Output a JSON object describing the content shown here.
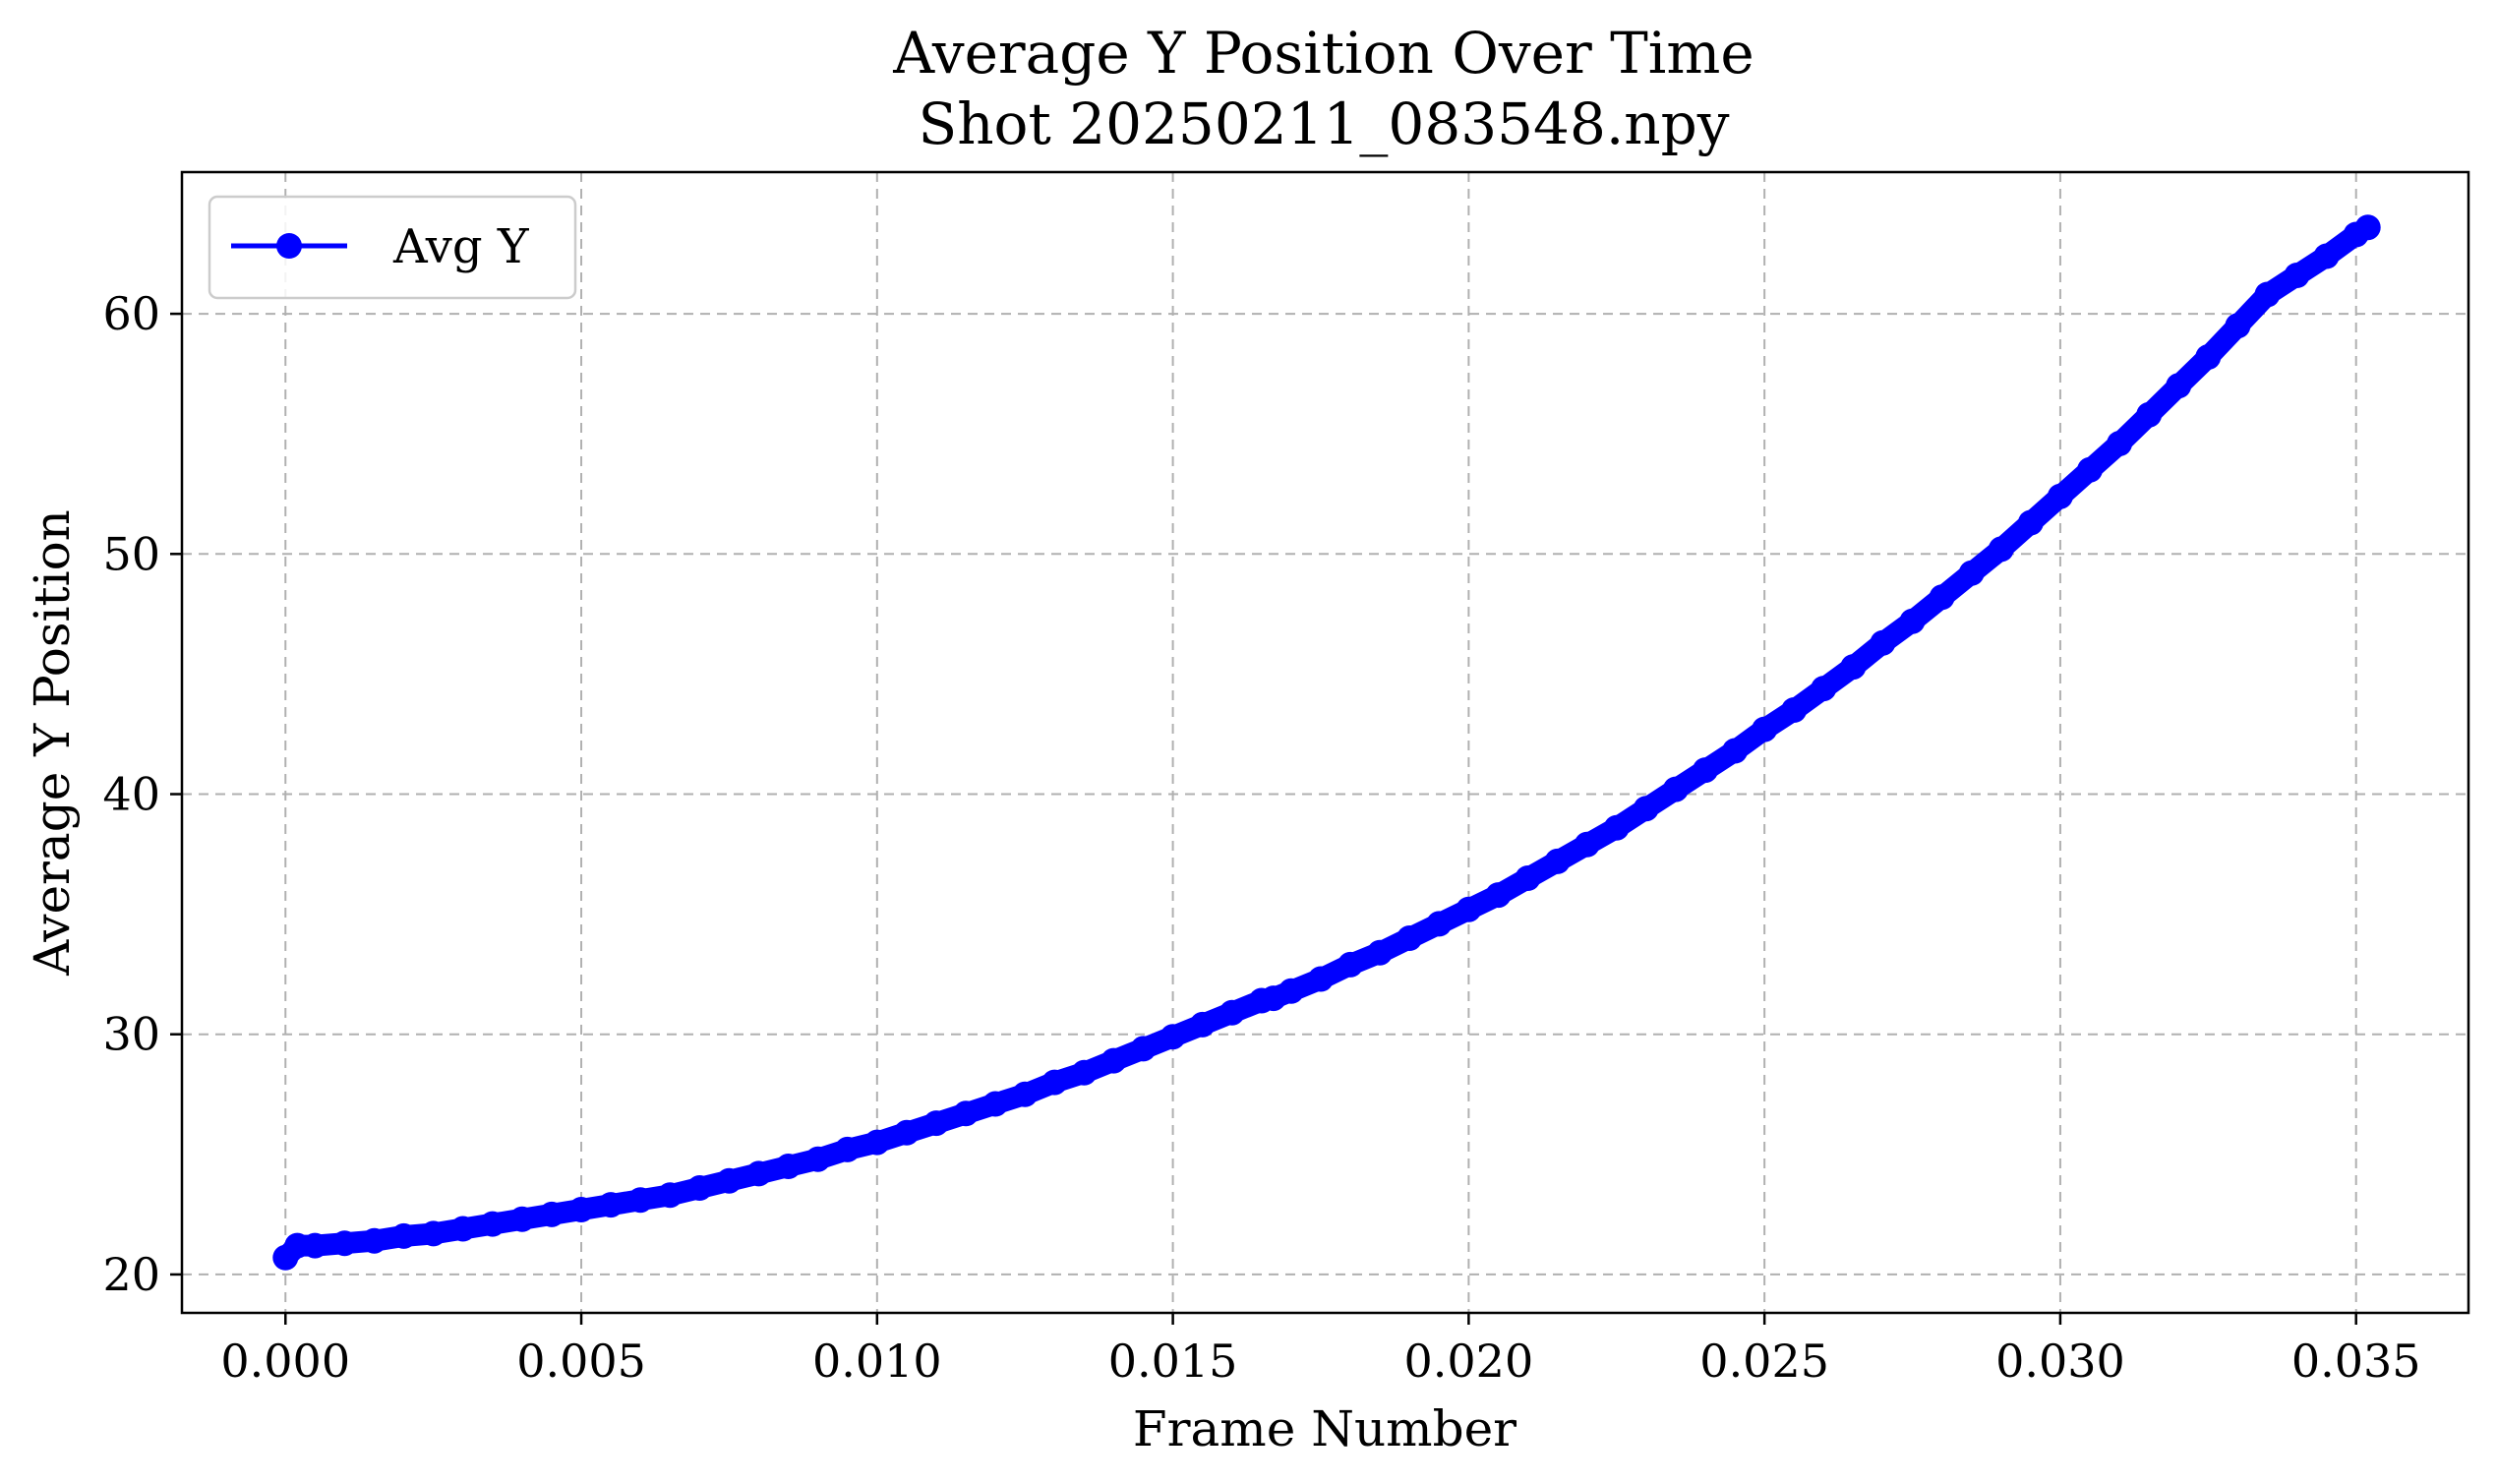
{
  "chart_data": {
    "type": "line",
    "title": "Average Y Position Over Time",
    "subtitle": "Shot 20250211_083548.npy",
    "xlabel": "Frame Number",
    "ylabel": "Average Y Position",
    "xlim": [
      -0.00175,
      0.0369
    ],
    "ylim": [
      18.4,
      65.9
    ],
    "xticks": [
      0.0,
      0.005,
      0.01,
      0.015,
      0.02,
      0.025,
      0.03,
      0.035
    ],
    "xtick_labels": [
      "0.000",
      "0.005",
      "0.010",
      "0.015",
      "0.020",
      "0.025",
      "0.030",
      "0.035"
    ],
    "yticks": [
      20,
      30,
      40,
      50,
      60
    ],
    "ytick_labels": [
      "20",
      "30",
      "40",
      "50",
      "60"
    ],
    "grid": true,
    "legend_position": "top-left",
    "series": [
      {
        "name": "Avg Y",
        "color": "#0000ff",
        "marker": "circle",
        "x": [
          0.0,
          0.0002,
          0.0005,
          0.001,
          0.0015,
          0.002,
          0.0025,
          0.003,
          0.0035,
          0.004,
          0.0045,
          0.005,
          0.0055,
          0.006,
          0.0065,
          0.007,
          0.0075,
          0.008,
          0.0085,
          0.009,
          0.0095,
          0.01,
          0.0105,
          0.011,
          0.0115,
          0.012,
          0.0125,
          0.013,
          0.0135,
          0.014,
          0.0145,
          0.015,
          0.0155,
          0.016,
          0.0165,
          0.0167,
          0.017,
          0.0175,
          0.018,
          0.0185,
          0.019,
          0.0195,
          0.02,
          0.0205,
          0.021,
          0.0215,
          0.022,
          0.0225,
          0.023,
          0.0235,
          0.024,
          0.0245,
          0.025,
          0.0255,
          0.026,
          0.0265,
          0.027,
          0.0275,
          0.028,
          0.0285,
          0.029,
          0.0295,
          0.03,
          0.0305,
          0.031,
          0.0315,
          0.032,
          0.0325,
          0.033,
          0.0335,
          0.034,
          0.0345,
          0.035,
          0.0352
        ],
        "y": [
          20.7,
          21.2,
          21.2,
          21.3,
          21.4,
          21.6,
          21.7,
          21.9,
          22.1,
          22.3,
          22.5,
          22.7,
          22.9,
          23.1,
          23.3,
          23.6,
          23.9,
          24.2,
          24.5,
          24.8,
          25.2,
          25.5,
          25.9,
          26.3,
          26.7,
          27.1,
          27.5,
          28.0,
          28.4,
          28.9,
          29.4,
          29.9,
          30.4,
          30.9,
          31.4,
          31.5,
          31.8,
          32.3,
          32.9,
          33.4,
          34.0,
          34.6,
          35.2,
          35.8,
          36.5,
          37.2,
          37.9,
          38.6,
          39.4,
          40.2,
          41.0,
          41.8,
          42.7,
          43.5,
          44.4,
          45.3,
          46.3,
          47.2,
          48.2,
          49.2,
          50.2,
          51.3,
          52.4,
          53.5,
          54.6,
          55.8,
          57.0,
          58.2,
          59.5,
          60.8,
          61.6,
          62.4,
          63.3,
          63.6
        ]
      }
    ]
  }
}
